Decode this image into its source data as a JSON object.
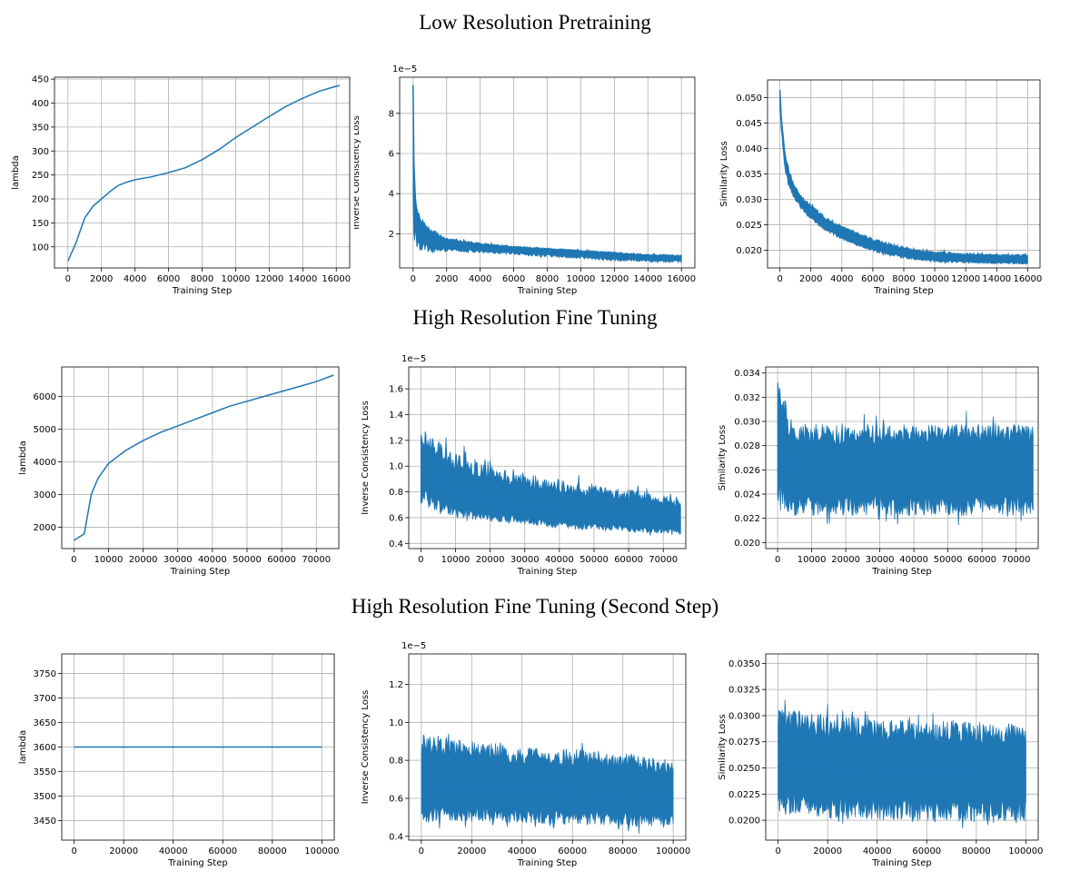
{
  "sections": [
    {
      "title": "Low Resolution Pretraining"
    },
    {
      "title": "High Resolution Fine Tuning"
    },
    {
      "title": "High Resolution Fine Tuning (Second Step)"
    }
  ],
  "chart_data": [
    {
      "type": "line",
      "section": 0,
      "xlabel": "Training Step",
      "ylabel": "lambda",
      "xlim": [
        -800,
        16800
      ],
      "ylim": [
        56,
        454
      ],
      "grid": true,
      "color": "#1f77b4",
      "xticks": [
        0,
        2000,
        4000,
        6000,
        8000,
        10000,
        12000,
        14000,
        16000
      ],
      "yticks": [
        100,
        150,
        200,
        250,
        300,
        350,
        400,
        450
      ],
      "series": [
        {
          "x": [
            0,
            500,
            1000,
            1500,
            2000,
            2500,
            3000,
            3500,
            4000,
            5000,
            6000,
            7000,
            8000,
            9000,
            10000,
            11000,
            12000,
            13000,
            14000,
            15000,
            16000,
            16200
          ],
          "y": [
            70,
            110,
            160,
            185,
            200,
            215,
            228,
            235,
            240,
            246,
            255,
            265,
            282,
            303,
            328,
            350,
            372,
            393,
            410,
            425,
            435,
            437
          ]
        }
      ]
    },
    {
      "type": "line",
      "section": 0,
      "xlabel": "Training Step",
      "ylabel": "Inverse Consistency Loss",
      "offset_text": "1e−5",
      "xlim": [
        -800,
        16800
      ],
      "ylim": [
        3e-06,
        9.8e-05
      ],
      "grid": true,
      "color": "#1f77b4",
      "xticks": [
        0,
        2000,
        4000,
        6000,
        8000,
        10000,
        12000,
        14000,
        16000
      ],
      "yticks": [
        2,
        4,
        6,
        8
      ],
      "series": [
        {
          "x": [
            0,
            50,
            150,
            300,
            600,
            1000,
            2000,
            4000,
            6000,
            8000,
            10000,
            12000,
            14000,
            16000
          ],
          "y": [
            9.4,
            5.5,
            3.5,
            2.6,
            2.2,
            1.8,
            1.5,
            1.35,
            1.25,
            1.15,
            1.05,
            0.95,
            0.85,
            0.8
          ],
          "band_low": [
            1.5,
            1.3,
            1.3,
            1.2,
            1.1,
            1.05,
            1.1,
            1.05,
            0.95,
            0.85,
            0.75,
            0.65,
            0.6,
            0.55
          ],
          "band_high": [
            9.4,
            5.5,
            3.8,
            3.0,
            2.7,
            2.3,
            1.8,
            1.55,
            1.4,
            1.3,
            1.2,
            1.1,
            1.0,
            0.95
          ]
        }
      ]
    },
    {
      "type": "line",
      "section": 0,
      "xlabel": "Training Step",
      "ylabel": "Similarity Loss",
      "xlim": [
        -800,
        16800
      ],
      "ylim": [
        0.0165,
        0.0535
      ],
      "grid": true,
      "color": "#1f77b4",
      "xticks": [
        0,
        2000,
        4000,
        6000,
        8000,
        10000,
        12000,
        14000,
        16000
      ],
      "yticks": [
        0.02,
        0.025,
        0.03,
        0.035,
        0.04,
        0.045,
        0.05
      ],
      "series": [
        {
          "x": [
            0,
            100,
            300,
            600,
            1000,
            1500,
            2000,
            3000,
            4000,
            5000,
            6000,
            7000,
            8000,
            9000,
            10000,
            12000,
            14000,
            16000
          ],
          "y": [
            0.0515,
            0.045,
            0.038,
            0.034,
            0.031,
            0.029,
            0.0275,
            0.025,
            0.0235,
            0.0222,
            0.021,
            0.0202,
            0.0195,
            0.019,
            0.0187,
            0.0184,
            0.0182,
            0.0181
          ],
          "band_low": [
            0.046,
            0.043,
            0.036,
            0.032,
            0.0295,
            0.0275,
            0.026,
            0.0236,
            0.022,
            0.0208,
            0.0197,
            0.0189,
            0.0183,
            0.0179,
            0.0176,
            0.0174,
            0.0173,
            0.0172
          ],
          "band_high": [
            0.0515,
            0.047,
            0.04,
            0.036,
            0.0325,
            0.0305,
            0.029,
            0.0265,
            0.025,
            0.0236,
            0.0224,
            0.0215,
            0.0207,
            0.0201,
            0.0198,
            0.0195,
            0.0193,
            0.0192
          ]
        }
      ]
    },
    {
      "type": "line",
      "section": 1,
      "xlabel": "Training Step",
      "ylabel": "lambda",
      "xlim": [
        -3500,
        76500
      ],
      "ylim": [
        1350,
        6900
      ],
      "grid": true,
      "color": "#1f77b4",
      "xticks": [
        0,
        10000,
        20000,
        30000,
        40000,
        50000,
        60000,
        70000
      ],
      "yticks": [
        2000,
        3000,
        4000,
        5000,
        6000
      ],
      "series": [
        {
          "x": [
            0,
            3000,
            5000,
            7000,
            10000,
            15000,
            20000,
            25000,
            30000,
            35000,
            40000,
            45000,
            50000,
            55000,
            60000,
            65000,
            70000,
            75000
          ],
          "y": [
            1600,
            1800,
            3000,
            3500,
            3950,
            4350,
            4650,
            4900,
            5100,
            5300,
            5500,
            5700,
            5850,
            6000,
            6150,
            6300,
            6450,
            6650
          ]
        }
      ]
    },
    {
      "type": "line",
      "section": 1,
      "xlabel": "Training Step",
      "ylabel": "Inverse Consistency Loss",
      "offset_text": "1e−5",
      "xlim": [
        -3500,
        76500
      ],
      "ylim": [
        3.6e-06,
        1.77e-05
      ],
      "grid": true,
      "color": "#1f77b4",
      "xticks": [
        0,
        10000,
        20000,
        30000,
        40000,
        50000,
        60000,
        70000
      ],
      "yticks": [
        0.4,
        0.6,
        0.8,
        1.0,
        1.2,
        1.4,
        1.6
      ],
      "series": [
        {
          "x": [
            0,
            2000,
            5000,
            10000,
            15000,
            20000,
            25000,
            30000,
            35000,
            40000,
            45000,
            50000,
            55000,
            60000,
            65000,
            70000,
            75000
          ],
          "y": [
            1.0,
            0.95,
            0.88,
            0.8,
            0.76,
            0.72,
            0.7,
            0.68,
            0.66,
            0.64,
            0.63,
            0.62,
            0.61,
            0.6,
            0.59,
            0.58,
            0.58
          ],
          "band_low": [
            0.7,
            0.68,
            0.65,
            0.6,
            0.58,
            0.57,
            0.56,
            0.55,
            0.53,
            0.52,
            0.51,
            0.5,
            0.5,
            0.49,
            0.48,
            0.48,
            0.47
          ],
          "band_high": [
            1.3,
            1.25,
            1.2,
            1.1,
            1.05,
            1.0,
            0.97,
            0.95,
            0.92,
            0.9,
            0.88,
            0.86,
            0.84,
            0.82,
            0.8,
            0.78,
            0.76
          ]
        }
      ]
    },
    {
      "type": "line",
      "section": 1,
      "xlabel": "Training Step",
      "ylabel": "Similarity Loss",
      "xlim": [
        -3500,
        76500
      ],
      "ylim": [
        0.0195,
        0.0345
      ],
      "grid": true,
      "color": "#1f77b4",
      "xticks": [
        0,
        10000,
        20000,
        30000,
        40000,
        50000,
        60000,
        70000
      ],
      "yticks": [
        0.02,
        0.022,
        0.024,
        0.026,
        0.028,
        0.03,
        0.032,
        0.034
      ],
      "series": [
        {
          "x": [
            0,
            1000,
            3000,
            5000,
            10000,
            20000,
            30000,
            40000,
            50000,
            60000,
            70000,
            75000
          ],
          "y": [
            0.028,
            0.0275,
            0.0265,
            0.026,
            0.026,
            0.026,
            0.026,
            0.026,
            0.026,
            0.026,
            0.026,
            0.026
          ],
          "band_low": [
            0.0235,
            0.023,
            0.0225,
            0.0222,
            0.0222,
            0.0222,
            0.0222,
            0.0222,
            0.0222,
            0.0222,
            0.0222,
            0.0222
          ],
          "band_high": [
            0.034,
            0.033,
            0.031,
            0.0298,
            0.0298,
            0.0298,
            0.0298,
            0.0298,
            0.0298,
            0.0298,
            0.0298,
            0.0298
          ]
        }
      ]
    },
    {
      "type": "line",
      "section": 2,
      "xlabel": "Training Step",
      "ylabel": "lambda",
      "xlim": [
        -5000,
        105000
      ],
      "ylim": [
        3410,
        3790
      ],
      "grid": true,
      "color": "#1f77b4",
      "xticks": [
        0,
        20000,
        40000,
        60000,
        80000,
        100000
      ],
      "yticks": [
        3450,
        3500,
        3550,
        3600,
        3650,
        3700,
        3750
      ],
      "series": [
        {
          "x": [
            0,
            100000
          ],
          "y": [
            3600,
            3600
          ]
        }
      ]
    },
    {
      "type": "line",
      "section": 2,
      "xlabel": "Training Step",
      "ylabel": "Inverse Consistency Loss",
      "offset_text": "1e−5",
      "xlim": [
        -5000,
        105000
      ],
      "ylim": [
        3.8e-06,
        1.36e-05
      ],
      "grid": true,
      "color": "#1f77b4",
      "xticks": [
        0,
        20000,
        40000,
        60000,
        80000,
        100000
      ],
      "yticks": [
        0.4,
        0.6,
        0.8,
        1.0,
        1.2
      ],
      "series": [
        {
          "x": [
            0,
            10000,
            20000,
            30000,
            40000,
            50000,
            60000,
            70000,
            80000,
            90000,
            100000
          ],
          "y": [
            0.68,
            0.67,
            0.66,
            0.65,
            0.64,
            0.64,
            0.63,
            0.63,
            0.62,
            0.62,
            0.61
          ],
          "band_low": [
            0.47,
            0.48,
            0.48,
            0.47,
            0.47,
            0.46,
            0.46,
            0.46,
            0.45,
            0.45,
            0.45
          ],
          "band_high": [
            0.95,
            0.92,
            0.9,
            0.9,
            0.88,
            0.86,
            0.86,
            0.85,
            0.84,
            0.82,
            0.8
          ]
        }
      ]
    },
    {
      "type": "line",
      "section": 2,
      "xlabel": "Training Step",
      "ylabel": "Similarity Loss",
      "xlim": [
        -5000,
        105000
      ],
      "ylim": [
        0.0181,
        0.0359
      ],
      "grid": true,
      "color": "#1f77b4",
      "xticks": [
        0,
        20000,
        40000,
        60000,
        80000,
        100000
      ],
      "yticks": [
        0.02,
        0.0225,
        0.025,
        0.0275,
        0.03,
        0.0325,
        0.035
      ],
      "series": [
        {
          "x": [
            0,
            10000,
            20000,
            30000,
            40000,
            50000,
            60000,
            70000,
            80000,
            90000,
            100000
          ],
          "y": [
            0.0255,
            0.0252,
            0.025,
            0.0248,
            0.0248,
            0.0247,
            0.0246,
            0.0246,
            0.0245,
            0.0245,
            0.0245
          ],
          "band_low": [
            0.0205,
            0.0205,
            0.0202,
            0.02,
            0.02,
            0.02,
            0.0199,
            0.0199,
            0.0198,
            0.0198,
            0.0197
          ],
          "band_high": [
            0.031,
            0.0305,
            0.0302,
            0.03,
            0.0298,
            0.0297,
            0.0296,
            0.0295,
            0.0294,
            0.0294,
            0.0293
          ]
        }
      ]
    }
  ]
}
